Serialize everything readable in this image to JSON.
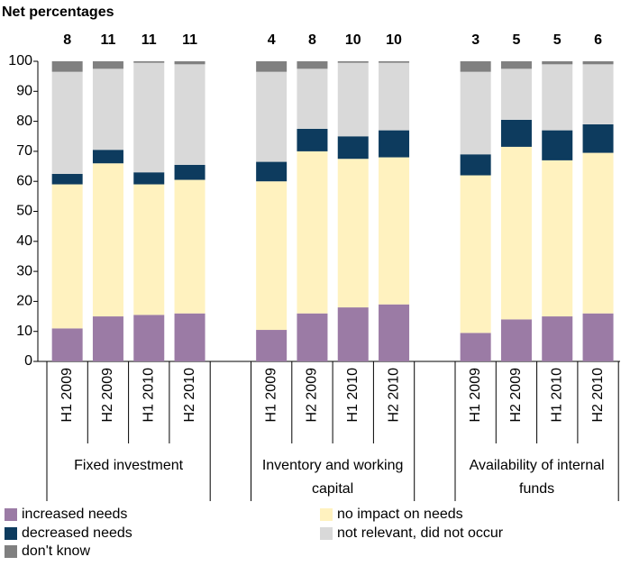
{
  "chart_data": {
    "type": "bar",
    "stacked": true,
    "subtitle": "Net percentages",
    "groups": [
      {
        "name": "Fixed investment",
        "categories": [
          "H1 2009",
          "H2 2009",
          "H1 2010",
          "H2 2010"
        ]
      },
      {
        "name": "Inventory and working capital",
        "categories": [
          "H1 2009",
          "H2 2009",
          "H1 2010",
          "H2 2010"
        ]
      },
      {
        "name": "Availability of internal funds",
        "categories": [
          "H1 2009",
          "H2 2009",
          "H1 2010",
          "H2 2010"
        ]
      }
    ],
    "net_values": [
      8,
      11,
      11,
      11,
      4,
      8,
      10,
      10,
      3,
      5,
      5,
      6
    ],
    "series": [
      {
        "name": "increased needs",
        "color": "#9b7ba5",
        "values": [
          11,
          15,
          15.5,
          16,
          10.5,
          16,
          18,
          19,
          9.5,
          14,
          15,
          16
        ]
      },
      {
        "name": "decreased needs",
        "color": "#0d3b5e",
        "values": [
          3.5,
          4.5,
          4,
          5,
          6.5,
          7.5,
          7.5,
          9,
          7,
          9,
          10,
          9.5
        ]
      },
      {
        "name": "don't know",
        "color": "#808080",
        "values": [
          3.5,
          2.5,
          0.5,
          1,
          3.5,
          2.5,
          0.5,
          0.5,
          3.5,
          2.5,
          1,
          1
        ]
      },
      {
        "name": "no impact on needs",
        "color": "#fff2bf",
        "values": [
          48,
          51,
          43.5,
          44.5,
          49.5,
          54,
          49.5,
          49,
          52.5,
          57.5,
          52,
          53.5
        ]
      },
      {
        "name": "not relevant, did not occur",
        "color": "#d9d9d9",
        "values": [
          34,
          27,
          36.5,
          33.5,
          30,
          20,
          24.5,
          22.5,
          27.5,
          17,
          22,
          20
        ]
      }
    ],
    "stack_order": [
      "increased needs",
      "no impact on needs",
      "decreased needs",
      "not relevant, did not occur",
      "don't know"
    ],
    "ylim": [
      0,
      100
    ],
    "yticks": [
      0,
      10,
      20,
      30,
      40,
      50,
      60,
      70,
      80,
      90,
      100
    ],
    "grid": false
  }
}
